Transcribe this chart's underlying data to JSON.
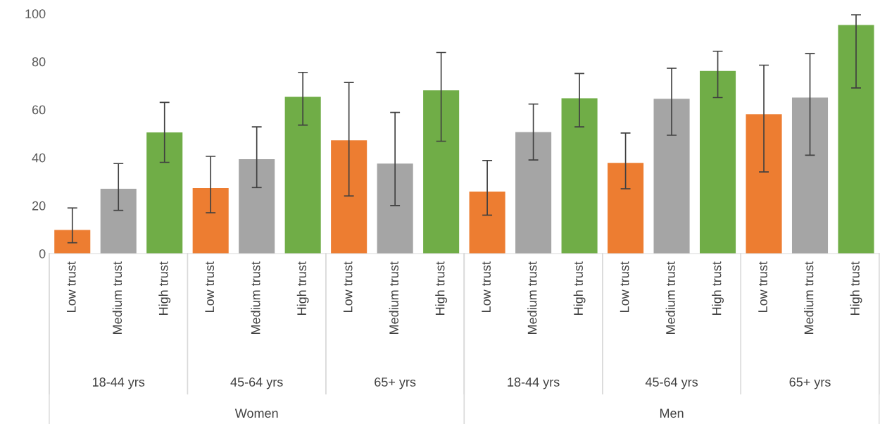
{
  "chart_data": {
    "type": "bar",
    "categories": [
      "Low trust",
      "Medium trust",
      "High trust",
      "Low trust",
      "Medium trust",
      "High trust",
      "Low trust",
      "Medium trust",
      "High trust",
      "Low trust",
      "Medium trust",
      "High trust",
      "Low trust",
      "Medium trust",
      "High trust",
      "Low trust",
      "Medium trust",
      "High trust"
    ],
    "values": [
      9.8,
      27,
      50.5,
      27.3,
      39.3,
      65.3,
      47.2,
      37.5,
      68,
      25.8,
      50.6,
      64.7,
      37.8,
      64.5,
      76.1,
      58,
      65,
      95.2
    ],
    "colors": [
      "#ed7d31",
      "#a5a5a5",
      "#70ad47",
      "#ed7d31",
      "#a5a5a5",
      "#70ad47",
      "#ed7d31",
      "#a5a5a5",
      "#70ad47",
      "#ed7d31",
      "#a5a5a5",
      "#70ad47",
      "#ed7d31",
      "#a5a5a5",
      "#70ad47",
      "#ed7d31",
      "#a5a5a5",
      "#70ad47"
    ],
    "errors": [
      [
        4.5,
        19
      ],
      [
        18,
        37.5
      ],
      [
        38,
        63
      ],
      [
        17,
        40.5
      ],
      [
        27.5,
        52.8
      ],
      [
        53.5,
        75.5
      ],
      [
        24,
        71.3
      ],
      [
        20,
        58.8
      ],
      [
        46.8,
        83.8
      ],
      [
        16,
        38.8
      ],
      [
        39,
        62.3
      ],
      [
        52.8,
        75
      ],
      [
        27,
        50.2
      ],
      [
        49.3,
        77.2
      ],
      [
        65,
        84.3
      ],
      [
        34,
        78.5
      ],
      [
        41,
        83.3
      ],
      [
        69,
        99.5
      ]
    ],
    "annotations": [
      "18-44 yrs",
      "45-64 yrs",
      "65+ yrs",
      "18-44 yrs",
      "45-64 yrs",
      "65+ yrs",
      "Women",
      "Men"
    ],
    "ylim": [
      0,
      100
    ],
    "yticks": [
      0,
      20,
      40,
      60,
      80,
      100
    ],
    "grid": false,
    "legend": false
  }
}
